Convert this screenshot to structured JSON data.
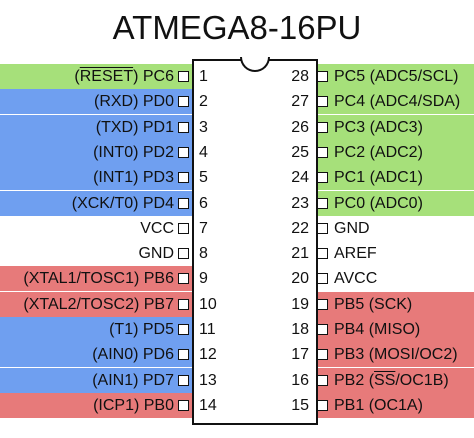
{
  "title": "ATMEGA8-16PU",
  "colors": {
    "green": "#a6e07a",
    "blue": "#6f9ff0",
    "red": "#e77a7a",
    "white": "#ffffff"
  },
  "left_pins": [
    {
      "num": "1",
      "pre": "(",
      "over": "RESET",
      "post": ") PC6",
      "color": "green"
    },
    {
      "num": "2",
      "pre": "(RXD) PD0",
      "over": "",
      "post": "",
      "color": "blue"
    },
    {
      "num": "3",
      "pre": "(TXD) PD1",
      "over": "",
      "post": "",
      "color": "blue"
    },
    {
      "num": "4",
      "pre": "(INT0) PD2",
      "over": "",
      "post": "",
      "color": "blue"
    },
    {
      "num": "5",
      "pre": "(INT1) PD3",
      "over": "",
      "post": "",
      "color": "blue"
    },
    {
      "num": "6",
      "pre": "(XCK/T0) PD4",
      "over": "",
      "post": "",
      "color": "blue"
    },
    {
      "num": "7",
      "pre": "VCC",
      "over": "",
      "post": "",
      "color": "white"
    },
    {
      "num": "8",
      "pre": "GND",
      "over": "",
      "post": "",
      "color": "white"
    },
    {
      "num": "9",
      "pre": "(XTAL1/TOSC1) PB6",
      "over": "",
      "post": "",
      "color": "red"
    },
    {
      "num": "10",
      "pre": "(XTAL2/TOSC2) PB7",
      "over": "",
      "post": "",
      "color": "red"
    },
    {
      "num": "11",
      "pre": "(T1) PD5",
      "over": "",
      "post": "",
      "color": "blue"
    },
    {
      "num": "12",
      "pre": "(AIN0) PD6",
      "over": "",
      "post": "",
      "color": "blue"
    },
    {
      "num": "13",
      "pre": "(AIN1) PD7",
      "over": "",
      "post": "",
      "color": "blue"
    },
    {
      "num": "14",
      "pre": "(ICP1) PB0",
      "over": "",
      "post": "",
      "color": "red"
    }
  ],
  "right_pins": [
    {
      "num": "28",
      "pre": "PC5 (ADC5/SCL)",
      "over": "",
      "post": "",
      "color": "green"
    },
    {
      "num": "27",
      "pre": "PC4 (ADC4/SDA)",
      "over": "",
      "post": "",
      "color": "green"
    },
    {
      "num": "26",
      "pre": "PC3 (ADC3)",
      "over": "",
      "post": "",
      "color": "green"
    },
    {
      "num": "25",
      "pre": "PC2 (ADC2)",
      "over": "",
      "post": "",
      "color": "green"
    },
    {
      "num": "24",
      "pre": "PC1 (ADC1)",
      "over": "",
      "post": "",
      "color": "green"
    },
    {
      "num": "23",
      "pre": "PC0 (ADC0)",
      "over": "",
      "post": "",
      "color": "green"
    },
    {
      "num": "22",
      "pre": "GND",
      "over": "",
      "post": "",
      "color": "white"
    },
    {
      "num": "21",
      "pre": "AREF",
      "over": "",
      "post": "",
      "color": "white"
    },
    {
      "num": "20",
      "pre": "AVCC",
      "over": "",
      "post": "",
      "color": "white"
    },
    {
      "num": "19",
      "pre": "PB5 (SCK)",
      "over": "",
      "post": "",
      "color": "red"
    },
    {
      "num": "18",
      "pre": "PB4 (MISO)",
      "over": "",
      "post": "",
      "color": "red"
    },
    {
      "num": "17",
      "pre": "PB3 (MOSI/OC2)",
      "over": "",
      "post": "",
      "color": "red"
    },
    {
      "num": "16",
      "pre": "PB2 (",
      "over": "SS",
      "post": "/OC1B)",
      "color": "red"
    },
    {
      "num": "15",
      "pre": "PB1 (OC1A)",
      "over": "",
      "post": "",
      "color": "red"
    }
  ]
}
